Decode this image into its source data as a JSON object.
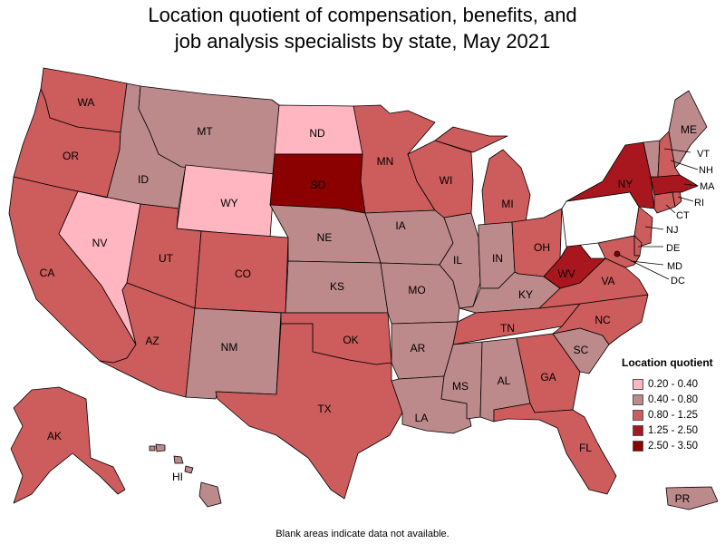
{
  "title": {
    "line1": "Location quotient of compensation, benefits, and",
    "line2": "job analysis specialists by state, May 2021"
  },
  "legend": {
    "title": "Location quotient",
    "items": [
      {
        "label": "0.20 - 0.40",
        "color": "#ffb6c1"
      },
      {
        "label": "0.40 - 0.80",
        "color": "#bc8a8a"
      },
      {
        "label": "0.80 - 1.25",
        "color": "#cd5c5c"
      },
      {
        "label": "1.25 - 2.50",
        "color": "#a8171e"
      },
      {
        "label": "2.50 - 3.50",
        "color": "#8b0000"
      }
    ]
  },
  "blank_color": "#ffffff",
  "footnote": "Blank areas indicate data not available.",
  "states": {
    "WA": {
      "class": 2
    },
    "OR": {
      "class": 2
    },
    "CA": {
      "class": 2
    },
    "NV": {
      "class": 0
    },
    "ID": {
      "class": 1
    },
    "MT": {
      "class": 1
    },
    "WY": {
      "class": 0
    },
    "UT": {
      "class": 2
    },
    "AZ": {
      "class": 2
    },
    "CO": {
      "class": 2
    },
    "NM": {
      "class": 1
    },
    "ND": {
      "class": 0
    },
    "SD": {
      "class": 4
    },
    "NE": {
      "class": 1
    },
    "KS": {
      "class": 1
    },
    "OK": {
      "class": 2
    },
    "TX": {
      "class": 2
    },
    "MN": {
      "class": 2
    },
    "IA": {
      "class": 1
    },
    "MO": {
      "class": 1
    },
    "AR": {
      "class": 1
    },
    "LA": {
      "class": 1
    },
    "WI": {
      "class": 2
    },
    "IL": {
      "class": 1
    },
    "MI": {
      "class": 2
    },
    "IN": {
      "class": 1
    },
    "OH": {
      "class": 2
    },
    "KY": {
      "class": 1
    },
    "TN": {
      "class": 2
    },
    "MS": {
      "class": 1
    },
    "AL": {
      "class": 1
    },
    "GA": {
      "class": 2
    },
    "FL": {
      "class": 2
    },
    "SC": {
      "class": 1
    },
    "NC": {
      "class": 2
    },
    "VA": {
      "class": 2
    },
    "WV": {
      "class": 3
    },
    "PA": {
      "class": -1
    },
    "NY": {
      "class": 3
    },
    "NJ": {
      "class": 2
    },
    "DE": {
      "class": 2
    },
    "MD": {
      "class": 2
    },
    "DC": {
      "class": 4
    },
    "CT": {
      "class": 2
    },
    "RI": {
      "class": 2
    },
    "MA": {
      "class": 3
    },
    "VT": {
      "class": 1
    },
    "NH": {
      "class": 2
    },
    "ME": {
      "class": 1
    },
    "AK": {
      "class": 2
    },
    "HI": {
      "class": 1
    },
    "PR": {
      "class": 1
    }
  }
}
